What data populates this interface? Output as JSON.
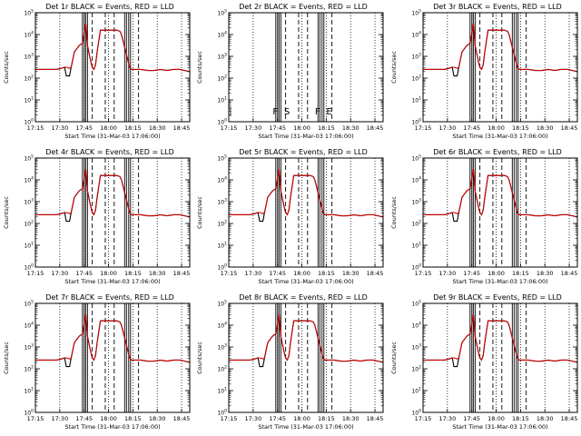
{
  "figure": {
    "xlabel": "Start Time (31-Mar-03 17:06:00)",
    "ylabel": "Counts/sec",
    "time_ticks": [
      "17:15",
      "17:30",
      "17:45",
      "18:00",
      "18:15",
      "18:30",
      "18:45"
    ],
    "y_ticks": [
      "10^0",
      "10^1",
      "10^2",
      "10^3",
      "10^4",
      "10^5"
    ],
    "interval_letters": [
      "F",
      "S",
      "F",
      "E"
    ],
    "colors": {
      "events": "#000000",
      "lld": "#cc0000",
      "axes": "#000000"
    }
  },
  "chart_data": [
    {
      "type": "line",
      "title": "Det 1r BLACK = Events, RED = LLD",
      "has_data": true,
      "xlim_min": [
        9,
        104
      ],
      "ylim_log10": [
        0,
        5
      ]
    },
    {
      "type": "line",
      "title": "Det 2r BLACK = Events, RED = LLD",
      "has_data": false,
      "xlim_min": [
        9,
        104
      ],
      "ylim_log10": [
        0,
        5
      ]
    },
    {
      "type": "line",
      "title": "Det 3r BLACK = Events, RED = LLD",
      "has_data": true,
      "xlim_min": [
        9,
        104
      ],
      "ylim_log10": [
        0,
        5
      ]
    },
    {
      "type": "line",
      "title": "Det 4r BLACK = Events, RED = LLD",
      "has_data": true,
      "xlim_min": [
        9,
        104
      ],
      "ylim_log10": [
        0,
        5
      ]
    },
    {
      "type": "line",
      "title": "Det 5r BLACK = Events, RED = LLD",
      "has_data": true,
      "xlim_min": [
        9,
        104
      ],
      "ylim_log10": [
        0,
        5
      ]
    },
    {
      "type": "line",
      "title": "Det 6r BLACK = Events, RED = LLD",
      "has_data": true,
      "xlim_min": [
        9,
        104
      ],
      "ylim_log10": [
        0,
        5
      ]
    },
    {
      "type": "line",
      "title": "Det 7r BLACK = Events, RED = LLD",
      "has_data": true,
      "xlim_min": [
        9,
        104
      ],
      "ylim_log10": [
        0,
        5
      ]
    },
    {
      "type": "line",
      "title": "Det 8r BLACK = Events, RED = LLD",
      "has_data": true,
      "xlim_min": [
        9,
        104
      ],
      "ylim_log10": [
        0,
        5
      ]
    },
    {
      "type": "line",
      "title": "Det 9r BLACK = Events, RED = LLD",
      "has_data": true,
      "xlim_min": [
        9,
        104
      ],
      "ylim_log10": [
        0,
        5
      ]
    }
  ],
  "series_common": {
    "x_min": [
      9,
      18,
      22,
      25,
      27,
      28,
      30,
      31,
      33,
      35,
      36,
      38,
      40,
      41,
      43,
      44,
      45,
      46,
      47,
      49,
      51,
      53,
      56,
      59,
      61,
      62,
      64,
      66,
      67,
      68,
      70,
      74,
      78,
      82,
      86,
      90,
      94,
      98,
      101,
      104
    ],
    "events_log10": [
      2.4,
      2.4,
      2.4,
      2.45,
      2.5,
      2.1,
      2.1,
      2.5,
      3.2,
      3.4,
      3.5,
      3.6,
      4.5,
      3.5,
      2.8,
      2.5,
      2.4,
      2.6,
      3.2,
      4.2,
      4.2,
      4.2,
      4.2,
      4.2,
      4.15,
      4.0,
      3.4,
      2.8,
      2.5,
      2.4,
      2.4,
      2.4,
      2.35,
      2.35,
      2.4,
      2.35,
      2.4,
      2.4,
      2.35,
      2.3
    ],
    "lld_log10": [
      2.4,
      2.4,
      2.4,
      2.45,
      2.5,
      2.5,
      2.45,
      2.5,
      3.2,
      3.4,
      3.5,
      3.6,
      4.5,
      3.5,
      2.8,
      2.5,
      2.4,
      2.6,
      3.2,
      4.2,
      4.2,
      4.2,
      4.2,
      4.2,
      4.15,
      4.0,
      3.4,
      2.8,
      2.5,
      2.4,
      2.4,
      2.4,
      2.35,
      2.35,
      2.4,
      2.35,
      2.4,
      2.4,
      2.35,
      2.3
    ],
    "solid_markers_min": [
      38.5,
      40.5,
      64.5,
      67.0
    ],
    "dashed_markers_min": [
      44.0,
      52.0,
      57.5,
      72.5
    ],
    "dotted_markers_min": [
      24,
      39,
      54,
      69,
      84,
      99
    ]
  }
}
